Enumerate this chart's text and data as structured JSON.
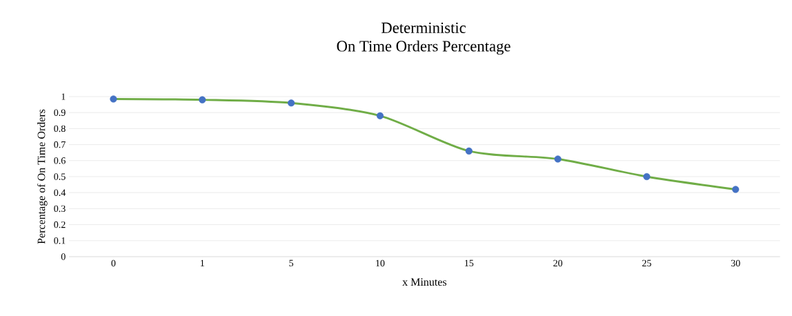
{
  "chart_data": {
    "type": "line",
    "title": "Deterministic\nOn Time Orders Percentage",
    "xlabel": "x Minutes",
    "ylabel": "Percentage of On Time Orders",
    "categories": [
      "0",
      "1",
      "5",
      "10",
      "15",
      "20",
      "25",
      "30"
    ],
    "series": [
      {
        "color": "#70ad47",
        "colors": [
          "#4472c4",
          "#4472c4",
          "#4472c4",
          "#4472c4",
          "#4472c4",
          "#4472c4",
          "#4472c4",
          "#4472c4"
        ],
        "values": [
          0.985,
          0.98,
          0.96,
          0.88,
          0.66,
          0.61,
          0.5,
          0.42
        ]
      }
    ],
    "ylim": [
      0,
      1
    ],
    "yticks": [
      0,
      0.1,
      0.2,
      0.3,
      0.4,
      0.5,
      0.6,
      0.7,
      0.8,
      0.9,
      1
    ],
    "grid": "y",
    "marker": "circle",
    "line_style": "solid"
  }
}
